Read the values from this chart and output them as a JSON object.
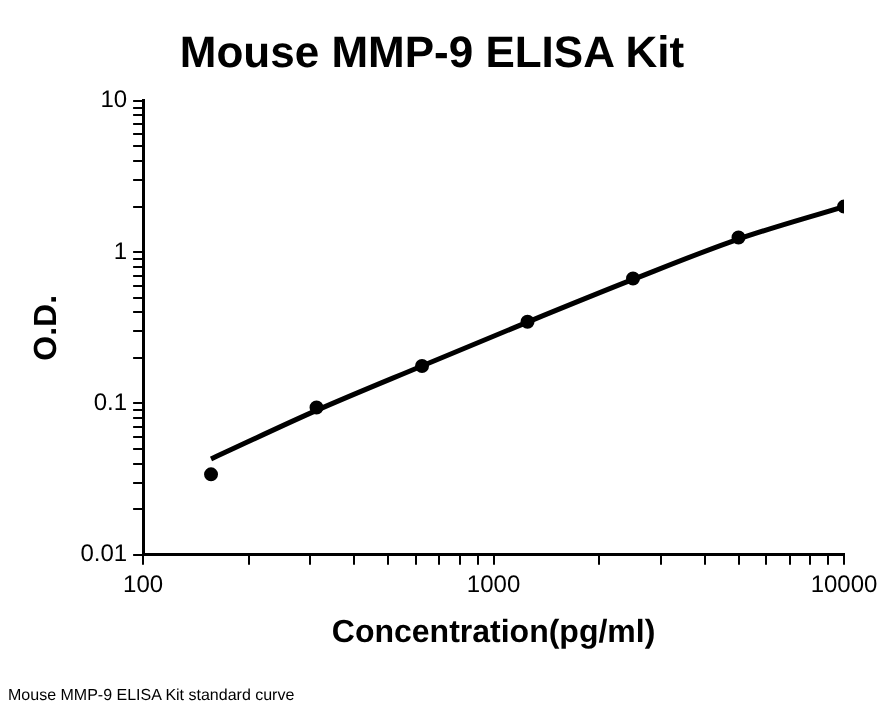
{
  "chart_data": {
    "type": "scatter",
    "title": "Mouse MMP-9 ELISA Kit",
    "xlabel": "Concentration(pg/ml)",
    "ylabel": "O.D.",
    "log": "xy",
    "grid": false,
    "legend": false,
    "xlim": [
      100,
      10000
    ],
    "ylim": [
      0.01,
      10
    ],
    "xticks": [
      100,
      {
        "value": 200,
        "label": null
      },
      {
        "value": 300,
        "label": null
      },
      {
        "value": 400,
        "label": null
      },
      {
        "value": 500,
        "label": null
      },
      {
        "value": 600,
        "label": null
      },
      {
        "value": 700,
        "label": null
      },
      {
        "value": 800,
        "label": null
      },
      {
        "value": 900,
        "label": null
      },
      1000,
      {
        "value": 2000,
        "label": null
      },
      {
        "value": 3000,
        "label": null
      },
      {
        "value": 4000,
        "label": null
      },
      {
        "value": 5000,
        "label": null
      },
      {
        "value": 6000,
        "label": null
      },
      {
        "value": 7000,
        "label": null
      },
      {
        "value": 8000,
        "label": null
      },
      {
        "value": 9000,
        "label": null
      },
      10000
    ],
    "yticks": [
      {
        "value": 0.01,
        "label": "0.01"
      },
      {
        "value": 0.02,
        "label": null
      },
      {
        "value": 0.03,
        "label": null
      },
      {
        "value": 0.04,
        "label": null
      },
      {
        "value": 0.05,
        "label": null
      },
      {
        "value": 0.06,
        "label": null
      },
      {
        "value": 0.07,
        "label": null
      },
      {
        "value": 0.08,
        "label": null
      },
      {
        "value": 0.09,
        "label": null
      },
      {
        "value": 0.1,
        "label": "0.1"
      },
      {
        "value": 0.2,
        "label": null
      },
      {
        "value": 0.3,
        "label": null
      },
      {
        "value": 0.4,
        "label": null
      },
      {
        "value": 0.5,
        "label": null
      },
      {
        "value": 0.6,
        "label": null
      },
      {
        "value": 0.7,
        "label": null
      },
      {
        "value": 0.8,
        "label": null
      },
      {
        "value": 0.9,
        "label": null
      },
      1,
      {
        "value": 2,
        "label": null
      },
      {
        "value": 3,
        "label": null
      },
      {
        "value": 4,
        "label": null
      },
      {
        "value": 5,
        "label": null
      },
      {
        "value": 6,
        "label": null
      },
      {
        "value": 7,
        "label": null
      },
      {
        "value": 8,
        "label": null
      },
      {
        "value": 9,
        "label": null
      },
      10
    ],
    "series": [
      {
        "color": "#000000",
        "marker": "circle",
        "x": [
          156.25,
          312.5,
          625,
          1250,
          2500,
          5000,
          10000
        ],
        "values": [
          0.034,
          0.094,
          0.177,
          0.347,
          0.67,
          1.25,
          2.0
        ]
      },
      {
        "type": "line",
        "color": "#000000",
        "marker": "none",
        "line_style": "solid",
        "x": [
          156.25,
          312.5,
          625,
          1250,
          2500,
          5000,
          10000
        ],
        "values": [
          0.043,
          0.09,
          0.177,
          0.345,
          0.66,
          1.22,
          2.0
        ]
      }
    ],
    "annotations": [
      "Mouse MMP-9 ELISA Kit standard curve"
    ]
  }
}
